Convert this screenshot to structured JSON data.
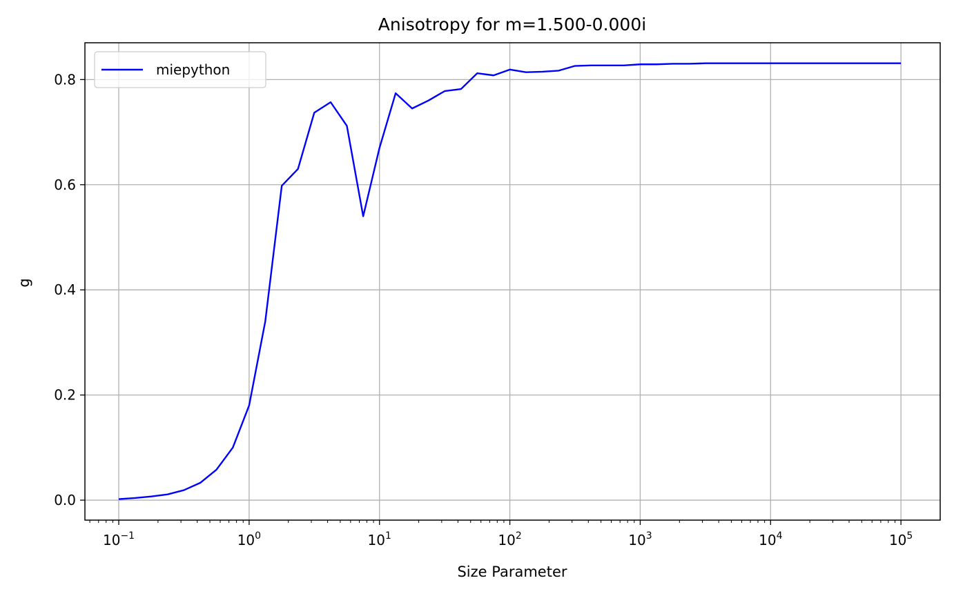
{
  "chart_data": {
    "type": "line",
    "title": "Anisotropy for m=1.500-0.000i",
    "xlabel": "Size Parameter",
    "ylabel": "g",
    "xscale": "log",
    "xlim": [
      0.055,
      200000
    ],
    "ylim": [
      -0.038,
      0.87
    ],
    "grid": true,
    "legend_position": "upper left",
    "xticks": [
      {
        "value": 0.1,
        "base": "10",
        "exp": "−1"
      },
      {
        "value": 1,
        "base": "10",
        "exp": "0"
      },
      {
        "value": 10,
        "base": "10",
        "exp": "1"
      },
      {
        "value": 100,
        "base": "10",
        "exp": "2"
      },
      {
        "value": 1000,
        "base": "10",
        "exp": "3"
      },
      {
        "value": 10000,
        "base": "10",
        "exp": "4"
      },
      {
        "value": 100000,
        "base": "10",
        "exp": "5"
      }
    ],
    "yticks": [
      {
        "value": 0.0,
        "label": "0.0"
      },
      {
        "value": 0.2,
        "label": "0.2"
      },
      {
        "value": 0.4,
        "label": "0.4"
      },
      {
        "value": 0.6,
        "label": "0.6"
      },
      {
        "value": 0.8,
        "label": "0.8"
      }
    ],
    "series": [
      {
        "name": "miepython",
        "color": "#0000ff",
        "x": [
          0.1,
          0.133,
          0.178,
          0.237,
          0.316,
          0.422,
          0.562,
          0.75,
          1.0,
          1.33,
          1.78,
          2.37,
          3.16,
          4.22,
          5.62,
          7.5,
          10.0,
          13.3,
          17.8,
          23.7,
          31.6,
          42.2,
          56.2,
          75.0,
          100.0,
          133.0,
          178.0,
          237.0,
          316.0,
          422.0,
          562.0,
          750.0,
          1000.0,
          1330.0,
          1780.0,
          2370.0,
          3160.0,
          4220.0,
          5620.0,
          7500.0,
          10000.0,
          13300.0,
          17800.0,
          23700.0,
          31600.0,
          42200.0,
          56200.0,
          75000.0,
          100000.0
        ],
        "y": [
          0.002,
          0.004,
          0.007,
          0.011,
          0.019,
          0.033,
          0.058,
          0.1,
          0.18,
          0.34,
          0.598,
          0.63,
          0.737,
          0.757,
          0.712,
          0.54,
          0.67,
          0.774,
          0.745,
          0.76,
          0.778,
          0.782,
          0.812,
          0.808,
          0.819,
          0.814,
          0.815,
          0.817,
          0.826,
          0.827,
          0.827,
          0.827,
          0.829,
          0.829,
          0.83,
          0.83,
          0.831,
          0.831,
          0.831,
          0.831,
          0.831,
          0.831,
          0.831,
          0.831,
          0.831,
          0.831,
          0.831,
          0.831,
          0.831
        ]
      }
    ]
  }
}
